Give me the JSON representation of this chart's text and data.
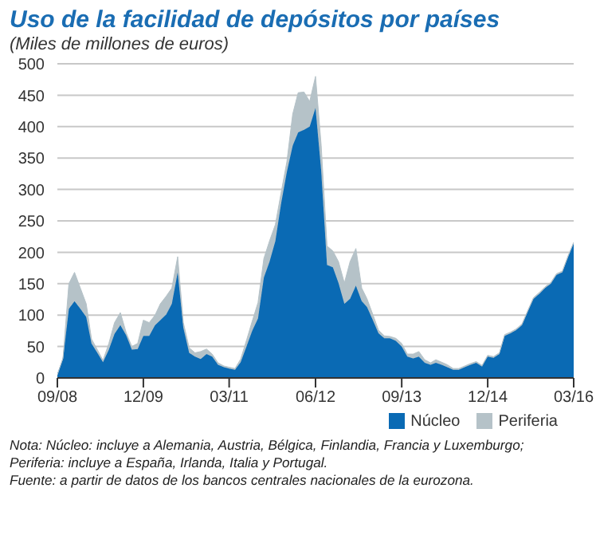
{
  "chart_data": {
    "type": "area",
    "stacked": true,
    "title": "Uso de la facilidad de depósitos por países",
    "subtitle": "(Miles de millones de euros)",
    "x": [
      "2008-09",
      "2008-10",
      "2008-11",
      "2008-12",
      "2009-01",
      "2009-02",
      "2009-03",
      "2009-04",
      "2009-05",
      "2009-06",
      "2009-07",
      "2009-08",
      "2009-09",
      "2009-10",
      "2009-11",
      "2009-12",
      "2010-01",
      "2010-02",
      "2010-03",
      "2010-04",
      "2010-05",
      "2010-06",
      "2010-07",
      "2010-08",
      "2010-09",
      "2010-10",
      "2010-11",
      "2010-12",
      "2011-01",
      "2011-02",
      "2011-03",
      "2011-04",
      "2011-05",
      "2011-06",
      "2011-07",
      "2011-08",
      "2011-09",
      "2011-10",
      "2011-11",
      "2011-12",
      "2012-01",
      "2012-02",
      "2012-03",
      "2012-04",
      "2012-05",
      "2012-06",
      "2012-07",
      "2012-08",
      "2012-09",
      "2012-10",
      "2012-11",
      "2012-12",
      "2013-01",
      "2013-02",
      "2013-03",
      "2013-04",
      "2013-05",
      "2013-06",
      "2013-07",
      "2013-08",
      "2013-09",
      "2013-10",
      "2013-11",
      "2013-12",
      "2014-01",
      "2014-02",
      "2014-03",
      "2014-04",
      "2014-05",
      "2014-06",
      "2014-07",
      "2014-08",
      "2014-09",
      "2014-10",
      "2014-11",
      "2014-12",
      "2015-01",
      "2015-02",
      "2015-03",
      "2015-04",
      "2015-05",
      "2015-06",
      "2015-07",
      "2015-08",
      "2015-09",
      "2015-10",
      "2015-11",
      "2015-12",
      "2016-01",
      "2016-02",
      "2016-03"
    ],
    "series": [
      {
        "name": "Núcleo",
        "color": "#0a6ab4",
        "values": [
          5,
          30,
          110,
          122,
          110,
          97,
          55,
          40,
          25,
          45,
          70,
          84,
          68,
          45,
          46,
          67,
          67,
          84,
          92,
          101,
          118,
          168,
          80,
          40,
          34,
          30,
          38,
          34,
          21,
          17,
          15,
          13,
          25,
          50,
          75,
          95,
          160,
          185,
          218,
          277,
          328,
          370,
          391,
          395,
          400,
          430,
          330,
          180,
          176,
          151,
          118,
          126,
          147,
          122,
          113,
          92,
          71,
          63,
          63,
          59,
          50,
          34,
          31,
          34,
          24,
          21,
          24,
          21,
          17,
          13,
          13,
          17,
          21,
          24,
          18,
          34,
          32,
          38,
          67,
          71,
          76,
          84,
          105,
          126,
          134,
          143,
          150,
          164,
          168,
          193,
          214
        ]
      },
      {
        "name": "Periferia",
        "color": "#b5c2c8",
        "values": [
          0,
          2,
          40,
          46,
          33,
          21,
          7,
          5,
          3,
          10,
          18,
          20,
          4,
          5,
          9,
          25,
          21,
          16,
          26,
          29,
          25,
          25,
          8,
          8,
          6,
          12,
          8,
          4,
          3,
          2,
          2,
          2,
          5,
          10,
          15,
          25,
          30,
          33,
          26,
          17,
          16,
          50,
          63,
          60,
          40,
          50,
          40,
          30,
          26,
          34,
          33,
          59,
          59,
          21,
          13,
          9,
          5,
          4,
          3,
          4,
          5,
          4,
          7,
          8,
          5,
          3,
          5,
          4,
          4,
          2,
          2,
          2,
          2,
          2,
          2,
          2,
          2,
          2,
          2,
          2,
          2,
          2,
          2,
          2,
          2,
          2,
          2,
          2,
          2,
          2,
          2
        ]
      }
    ],
    "xlim": [
      "2008-09",
      "2016-03"
    ],
    "xticks": [
      {
        "value": "2008-09",
        "label": "09/08"
      },
      {
        "value": "2009-12",
        "label": "12/09"
      },
      {
        "value": "2011-03",
        "label": "03/11"
      },
      {
        "value": "2012-06",
        "label": "06/12"
      },
      {
        "value": "2013-09",
        "label": "09/13"
      },
      {
        "value": "2014-12",
        "label": "12/14"
      },
      {
        "value": "2016-03",
        "label": "03/16"
      }
    ],
    "ylim": [
      0,
      500
    ],
    "yticks": [
      0,
      50,
      100,
      150,
      200,
      250,
      300,
      350,
      400,
      450,
      500
    ],
    "grid": "y",
    "legend": "bottom",
    "annotations": [
      "Nota: Núcleo: incluye a Alemania, Austria, Bélgica, Finlandia, Francia y Luxemburgo;",
      "Periferia: incluye a España, Irlanda, Italia y Portugal.",
      "Fuente: a partir de datos de los bancos centrales nacionales de la eurozona."
    ]
  }
}
